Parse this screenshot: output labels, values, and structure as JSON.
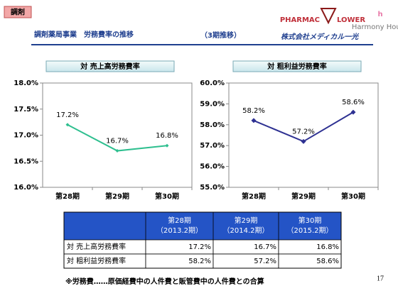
{
  "header": {
    "tag": "調剤",
    "title": "調剤薬局事業　労務費率の推移",
    "title_suffix": "（3期推移）",
    "company": "株式会社メディカル一光",
    "logo_left_a": "PHARMAC",
    "logo_left_b": "LOWER",
    "logo_right_letter": "h",
    "logo_right_name": "Harmony House"
  },
  "chart_data": [
    {
      "type": "line",
      "title": "対 売上高労務費率",
      "categories": [
        "第28期",
        "第29期",
        "第30期"
      ],
      "values": [
        17.2,
        16.7,
        16.8
      ],
      "value_labels": [
        "17.2%",
        "16.7%",
        "16.8%"
      ],
      "color": "#2ebf8f",
      "ylim": [
        16.0,
        18.0
      ],
      "yticks": [
        {
          "value": 16.0,
          "label": "16.0%"
        },
        {
          "value": 16.5,
          "label": "16.5%"
        },
        {
          "value": 17.0,
          "label": "17.0%"
        },
        {
          "value": 17.5,
          "label": "17.5%"
        },
        {
          "value": 18.0,
          "label": "18.0%"
        }
      ],
      "grid": false
    },
    {
      "type": "line",
      "title": "対 粗利益労務費率",
      "categories": [
        "第28期",
        "第29期",
        "第30期"
      ],
      "values": [
        58.2,
        57.2,
        58.6
      ],
      "value_labels": [
        "58.2%",
        "57.2%",
        "58.6%"
      ],
      "color": "#2e3192",
      "ylim": [
        55.0,
        60.0
      ],
      "yticks": [
        {
          "value": 55.0,
          "label": "55.0%"
        },
        {
          "value": 56.0,
          "label": "56.0%"
        },
        {
          "value": 57.0,
          "label": "57.0%"
        },
        {
          "value": 58.0,
          "label": "58.0%"
        },
        {
          "value": 59.0,
          "label": "59.0%"
        },
        {
          "value": 60.0,
          "label": "60.0%"
        }
      ],
      "grid": false
    }
  ],
  "table": {
    "header": [
      [
        "第28期",
        "（2013.2期）"
      ],
      [
        "第29期",
        "（2014.2期）"
      ],
      [
        "第30期",
        "（2015.2期）"
      ]
    ],
    "rows": [
      [
        "対 売上高労務費率",
        "17.2%",
        "16.7%",
        "16.8%"
      ],
      [
        "対 粗利益労務費率",
        "58.2%",
        "57.2%",
        "58.6%"
      ]
    ]
  },
  "footnote": "※労務費……原価経費中の人件費と販管費中の人件費との合算",
  "page_number": "17"
}
